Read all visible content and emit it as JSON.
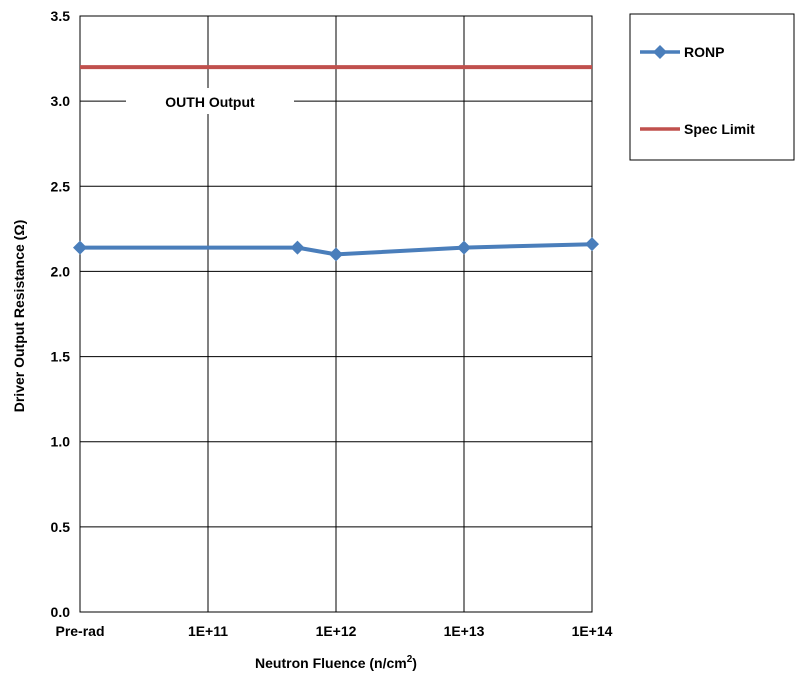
{
  "chart_data": {
    "type": "line",
    "xlabel_main": "Neutron Fluence (n/cm",
    "xlabel_sup": "2",
    "xlabel_end": ")",
    "ylabel": "Driver Output Resistance (Ω)",
    "annotation": "OUTH Output",
    "x_tick_labels": [
      "Pre-rad",
      "1E+11",
      "1E+12",
      "1E+13",
      "1E+14"
    ],
    "y_tick_labels": [
      "0.0",
      "0.5",
      "1.0",
      "1.5",
      "2.0",
      "2.5",
      "3.0",
      "3.5"
    ],
    "ylim": [
      0,
      3.5
    ],
    "y_ticks": [
      0,
      0.5,
      1.0,
      1.5,
      2.0,
      2.5,
      3.0,
      3.5
    ],
    "x_scale": "log (fluence), with Pre-rad at the left edge",
    "grid": true,
    "legend_position": "right",
    "series": [
      {
        "name": "RONP",
        "color": "#4a7ebb",
        "marker": "diamond",
        "points": [
          {
            "x": "Pre-rad",
            "y": 2.14
          },
          {
            "x": 500000000000.0,
            "y": 2.14
          },
          {
            "x": 1000000000000.0,
            "y": 2.1
          },
          {
            "x": 10000000000000.0,
            "y": 2.14
          },
          {
            "x": 100000000000000.0,
            "y": 2.16
          }
        ]
      },
      {
        "name": "Spec Limit",
        "color": "#c0504d",
        "marker": "none",
        "points": [
          {
            "x": "Pre-rad",
            "y": 3.2
          },
          {
            "x": 100000000000000.0,
            "y": 3.2
          }
        ]
      }
    ]
  }
}
